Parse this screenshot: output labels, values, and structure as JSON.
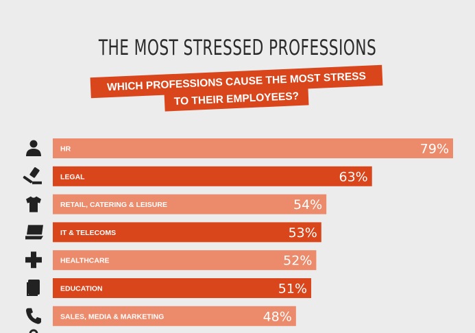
{
  "header": {
    "title": "THE MOST STRESSED PROFESSIONS",
    "subtitle_line1": "WHICH PROFESSIONS CAUSE THE MOST STRESS",
    "subtitle_line2": "TO THEIR EMPLOYEES?"
  },
  "colors": {
    "light_bar": "#ec8b6b",
    "dark_bar": "#d9461c",
    "icon": "#222222",
    "background": "#ececec"
  },
  "chart_data": {
    "type": "bar",
    "orientation": "horizontal",
    "title": "THE MOST STRESSED PROFESSIONS",
    "subtitle": "WHICH PROFESSIONS CAUSE THE MOST STRESS TO THEIR EMPLOYEES?",
    "categories": [
      "HR",
      "LEGAL",
      "RETAIL, CATERING & LEISURE",
      "IT & TELECOMS",
      "HEALTHCARE",
      "EDUCATION",
      "SALES, MEDIA & MARKETING"
    ],
    "values": [
      79,
      63,
      54,
      53,
      52,
      51,
      48
    ],
    "value_labels": [
      "79%",
      "63%",
      "54%",
      "53%",
      "52%",
      "51%",
      "48%"
    ],
    "icons": [
      "person-icon",
      "gavel-icon",
      "tshirt-icon",
      "laptop-icon",
      "medical-cross-icon",
      "book-icon",
      "phone-icon"
    ],
    "xlim": [
      0,
      79
    ],
    "grid": false
  }
}
